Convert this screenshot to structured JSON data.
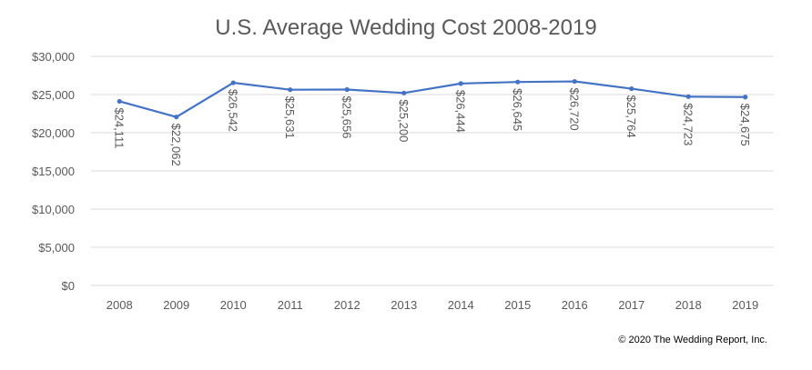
{
  "chart_data": {
    "type": "line",
    "title": "U.S. Average Wedding Cost 2008-2019",
    "xlabel": "",
    "ylabel": "",
    "categories": [
      "2008",
      "2009",
      "2010",
      "2011",
      "2012",
      "2013",
      "2014",
      "2015",
      "2016",
      "2017",
      "2018",
      "2019"
    ],
    "series": [
      {
        "name": "Average Wedding Cost",
        "values": [
          24111,
          22062,
          26542,
          25631,
          25656,
          25200,
          26444,
          26645,
          26720,
          25764,
          24723,
          24675
        ],
        "color": "#4472C4"
      }
    ],
    "data_labels": [
      "$24,111",
      "$22,062",
      "$26,542",
      "$25,631",
      "$25,656",
      "$25,200",
      "$26,444",
      "$26,645",
      "$26,720",
      "$25,764",
      "$24,723",
      "$24,675"
    ],
    "ylim": [
      0,
      30000
    ],
    "yticks": [
      0,
      5000,
      10000,
      15000,
      20000,
      25000,
      30000
    ],
    "ytick_labels": [
      "$0",
      "$5,000",
      "$10,000",
      "$15,000",
      "$20,000",
      "$25,000",
      "$30,000"
    ],
    "grid": true,
    "legend": "none"
  },
  "footer": {
    "copyright": "© 2020 The Wedding Report, Inc."
  }
}
